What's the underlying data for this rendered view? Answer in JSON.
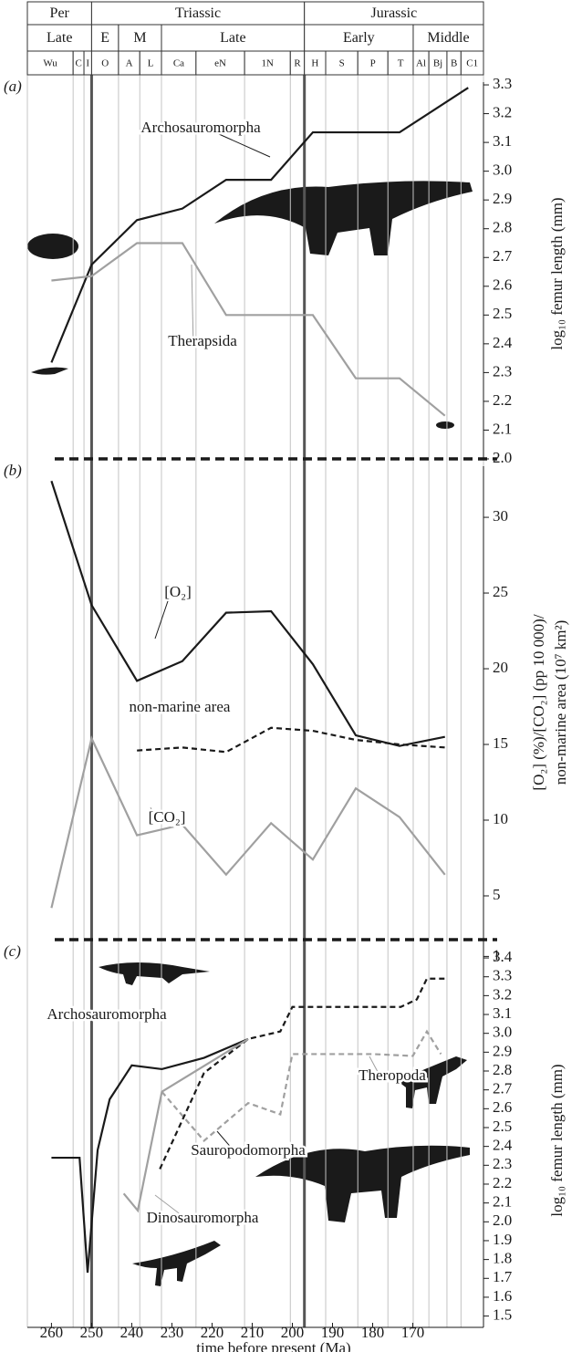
{
  "timescale": {
    "periods": [
      {
        "label": "Per",
        "start": 266,
        "end": 250
      },
      {
        "label": "Triassic",
        "start": 250,
        "end": 197
      },
      {
        "label": "Jurassic",
        "start": 197,
        "end": 152.4
      }
    ],
    "epochs": [
      {
        "label": "Late",
        "start": 266,
        "end": 250
      },
      {
        "label": "E",
        "start": 250,
        "end": 243.3
      },
      {
        "label": "M",
        "start": 243.3,
        "end": 232.6
      },
      {
        "label": "Late",
        "start": 232.6,
        "end": 197
      },
      {
        "label": "Early",
        "start": 197,
        "end": 169.9
      },
      {
        "label": "Middle",
        "start": 169.9,
        "end": 152.4
      }
    ],
    "stages": [
      "Wu",
      "C",
      "I",
      "O",
      "A",
      "L",
      "Ca",
      "eN",
      "1N",
      "R",
      "H",
      "S",
      "P",
      "T",
      "Al",
      "Bj",
      "B",
      "C1"
    ],
    "stage_bounds": [
      266,
      254.6,
      251.9,
      250,
      243.3,
      238,
      232.6,
      224,
      211.9,
      200.5,
      197,
      191.7,
      183.7,
      176.2,
      169.9,
      166,
      161.5,
      158,
      152.4
    ]
  },
  "chart_data": [
    {
      "type": "line",
      "panel": "(a)",
      "ylabel": "log₁₀ femur length (mm)",
      "xlim": [
        266,
        152.4
      ],
      "ylim": [
        2.0,
        3.335
      ],
      "yticks": [
        {
          "value": 2,
          "label": "2.0"
        },
        2.1,
        2.2,
        2.3,
        2.4,
        2.5,
        2.6,
        2.7,
        2.8,
        2.9,
        {
          "value": 3,
          "label": "3.0"
        },
        3.1,
        3.2,
        3.3
      ],
      "series": [
        {
          "name": "Archosauromorpha",
          "color": "#1a1a1a",
          "dashed": false,
          "x": [
            260,
            250,
            238.7,
            227.4,
            216.5,
            205.3,
            194.9,
            173.3,
            156.2
          ],
          "values": [
            2.335,
            2.675,
            2.83,
            2.87,
            2.97,
            2.97,
            3.135,
            3.135,
            3.29
          ]
        },
        {
          "name": "Therapsida",
          "color": "#a0a0a0",
          "dashed": false,
          "x": [
            260,
            250,
            238.7,
            227.4,
            216.5,
            205.3,
            194.9,
            184.2,
            173.3,
            162
          ],
          "values": [
            2.62,
            2.635,
            2.75,
            2.75,
            2.5,
            2.5,
            2.5,
            2.28,
            2.28,
            2.15
          ]
        }
      ]
    },
    {
      "type": "line",
      "panel": "(b)",
      "ylabel": [
        "[O₂] (%)/[CO₂] (pp 10 000)/",
        "non-marine area (10⁷ km²)"
      ],
      "xlim": [
        266,
        152.4
      ],
      "ylim": [
        0.3,
        33.86
      ],
      "yticks": [
        1,
        5,
        10,
        15,
        20,
        25,
        30
      ],
      "series": [
        {
          "name": "[O₂]",
          "color": "#1a1a1a",
          "dashed": false,
          "x": [
            260,
            250,
            238.7,
            227.4,
            216.5,
            205.3,
            194.9,
            184.2,
            173.3,
            162
          ],
          "values": [
            32.4,
            24.2,
            19.2,
            20.5,
            23.7,
            23.8,
            20.3,
            15.6,
            14.9,
            15.5
          ]
        },
        {
          "name": "non-marine area",
          "color": "#1a1a1a",
          "dashed": true,
          "x": [
            238.7,
            227.4,
            216.5,
            205.3,
            194.9,
            184.2,
            173.3,
            162
          ],
          "values": [
            14.6,
            14.8,
            14.5,
            16.1,
            15.9,
            15.3,
            15.0,
            14.8
          ]
        },
        {
          "name": "[CO₂]",
          "color": "#a0a0a0",
          "dashed": false,
          "x": [
            260,
            250,
            238.7,
            227.4,
            216.5,
            205.3,
            194.9,
            184.2,
            173.3,
            162
          ],
          "values": [
            4.2,
            15.4,
            9.0,
            9.7,
            6.4,
            9.8,
            7.4,
            12.1,
            10.2,
            6.4
          ]
        }
      ]
    },
    {
      "type": "line",
      "panel": "(c)",
      "ylabel": "log₁₀ femur length (mm)",
      "xlabel": "time before present (Ma)",
      "xlim": [
        266,
        152.4
      ],
      "ylim": [
        1.44,
        3.497
      ],
      "xticks": [
        260,
        250,
        240,
        230,
        220,
        210,
        200,
        190,
        180,
        170
      ],
      "yticks": [
        1.5,
        1.6,
        1.7,
        1.8,
        1.9,
        {
          "value": 2,
          "label": "2.0"
        },
        2.1,
        2.2,
        2.3,
        2.4,
        2.5,
        2.6,
        2.7,
        2.8,
        2.9,
        {
          "value": 3,
          "label": "3.0"
        },
        3.1,
        3.2,
        3.3,
        3.4
      ],
      "series": [
        {
          "name": "Archosauromorpha",
          "color": "#1a1a1a",
          "dashed": false,
          "x": [
            260,
            253,
            251,
            248.5,
            245.5,
            240,
            232.5,
            222,
            211
          ],
          "values": [
            2.34,
            2.34,
            1.73,
            2.38,
            2.65,
            2.83,
            2.81,
            2.87,
            2.97
          ]
        },
        {
          "name": "Theropoda",
          "color": "#a0a0a0",
          "dashed": true,
          "x": [
            232.5,
            222,
            211,
            203,
            200,
            190,
            180,
            170,
            166.5,
            163
          ],
          "values": [
            2.69,
            2.43,
            2.63,
            2.57,
            2.89,
            2.89,
            2.89,
            2.88,
            3.01,
            2.89
          ]
        },
        {
          "name": "Sauropodomorpha",
          "color": "#1a1a1a",
          "dashed": true,
          "x": [
            233,
            222,
            211,
            203,
            200,
            190,
            180,
            173,
            169,
            166.5,
            162
          ],
          "values": [
            2.28,
            2.79,
            2.97,
            3.01,
            3.14,
            3.14,
            3.14,
            3.14,
            3.18,
            3.29,
            3.29
          ]
        },
        {
          "name": "Dinosauromorpha",
          "color": "#a0a0a0",
          "dashed": false,
          "x": [
            242,
            238.5,
            232.5,
            211
          ],
          "values": [
            2.15,
            2.06,
            2.69,
            2.97
          ]
        }
      ]
    }
  ]
}
